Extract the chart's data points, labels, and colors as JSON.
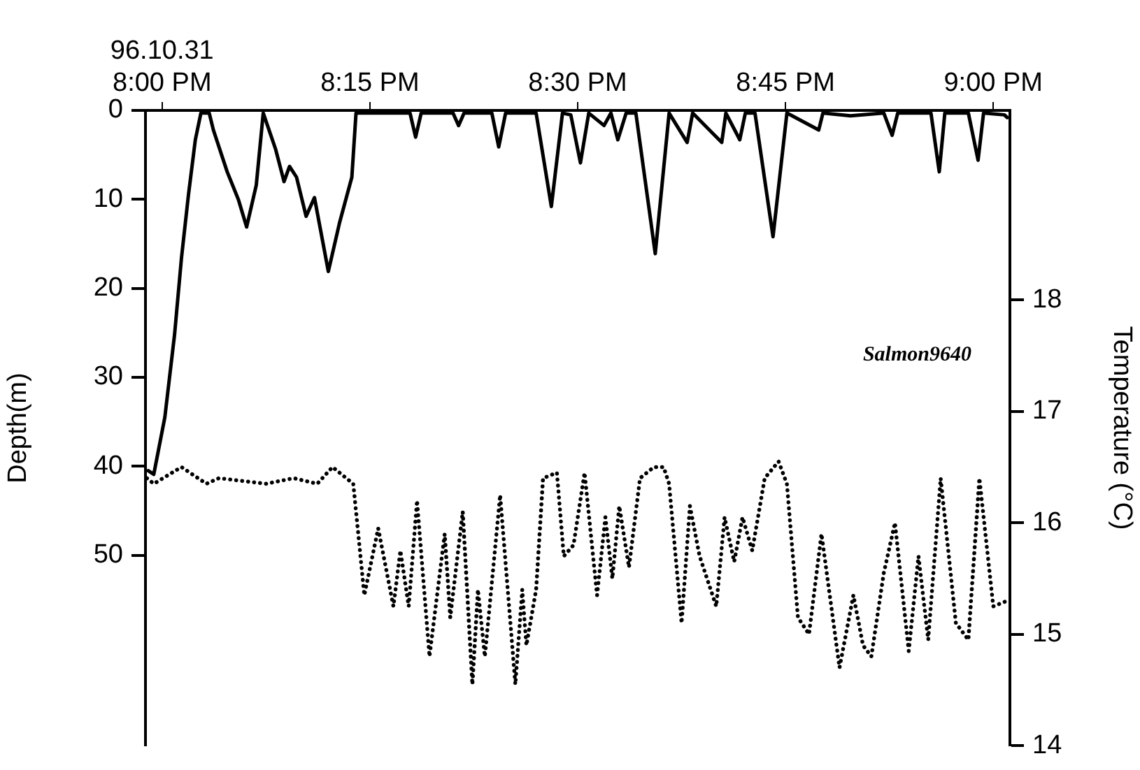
{
  "chart_data": {
    "type": "line",
    "ylabel": "Depth(m)",
    "y2label": "Temperature (°C)",
    "annotations": [
      "Salmon9640"
    ],
    "xlim": [
      19.98,
      21.02
    ],
    "xticks": [
      {
        "value": 20,
        "label": "96.10.31\n8:00 PM"
      },
      {
        "value": 20.25,
        "label": "8:15 PM"
      },
      {
        "value": 20.5,
        "label": "8:30 PM"
      },
      {
        "value": 20.75,
        "label": "8:45 PM"
      },
      {
        "value": 21,
        "label": "9:00 PM"
      }
    ],
    "ylim": [
      71.4,
      0
    ],
    "yticks": [
      0,
      10,
      20,
      30,
      40,
      50
    ],
    "y2lim": [
      14,
      19.7
    ],
    "y2ticks": [
      14,
      15,
      16,
      17,
      18
    ],
    "grid": false,
    "legend": false,
    "marker": "none",
    "series": [
      {
        "color": "#000000",
        "line_style": "solid",
        "x": [
          19.9833,
          19.99,
          20.0033,
          20.015,
          20.0233,
          20.0317,
          20.04,
          20.0467,
          20.0567,
          20.0617,
          20.0783,
          20.0917,
          20.1017,
          20.1133,
          20.1217,
          20.1367,
          20.1467,
          20.1533,
          20.1617,
          20.1733,
          20.1833,
          20.2,
          20.2133,
          20.2283,
          20.2333,
          20.2983,
          20.305,
          20.3117,
          20.35,
          20.3567,
          20.3633,
          20.3967,
          20.405,
          20.4133,
          20.45,
          20.4683,
          20.4817,
          20.4917,
          20.5033,
          20.5133,
          20.5317,
          20.54,
          20.5483,
          20.5583,
          20.57,
          20.5933,
          20.61,
          20.6317,
          20.6383,
          20.6733,
          20.6783,
          20.695,
          20.7017,
          20.7133,
          20.735,
          20.7517,
          20.79,
          20.795,
          20.8283,
          20.8683,
          20.8783,
          20.885,
          20.925,
          20.935,
          20.9417,
          20.97,
          20.9817,
          20.9883,
          21.0133,
          21.0167
        ],
        "values": [
          40.5,
          40.9,
          34.5,
          25.2,
          16.6,
          9.5,
          3.3,
          0.3,
          0.3,
          2.2,
          6.9,
          10.0,
          13.1,
          8.4,
          0.3,
          4.4,
          8.0,
          6.3,
          7.5,
          11.9,
          9.8,
          18.1,
          12.7,
          7.5,
          0.3,
          0.3,
          3.0,
          0.3,
          0.3,
          1.7,
          0.3,
          0.3,
          4.1,
          0.3,
          0.3,
          10.8,
          0.3,
          0.5,
          5.9,
          0.3,
          1.7,
          0.3,
          3.3,
          0.3,
          0.3,
          16.1,
          0.3,
          3.6,
          0.3,
          3.6,
          0.3,
          3.3,
          0.3,
          0.3,
          14.2,
          0.3,
          2.2,
          0.3,
          0.6,
          0.3,
          2.8,
          0.3,
          0.3,
          6.9,
          0.3,
          0.3,
          5.6,
          0.3,
          0.5,
          0.8
        ]
      },
      {
        "color": "#000000",
        "line_style": "dotted",
        "axis": "y2",
        "x": [
          19.9817,
          19.99,
          20.0233,
          20.0533,
          20.0683,
          20.125,
          20.1583,
          20.1867,
          20.205,
          20.23,
          20.2367,
          20.2433,
          20.26,
          20.2783,
          20.2867,
          20.2967,
          20.3067,
          20.3217,
          20.34,
          20.3467,
          20.3617,
          20.3733,
          20.38,
          20.3883,
          20.4067,
          20.425,
          20.4333,
          20.4383,
          20.45,
          20.4583,
          20.475,
          20.4833,
          20.495,
          20.5083,
          20.5233,
          20.5333,
          20.5417,
          20.55,
          20.5617,
          20.575,
          20.5917,
          20.6033,
          20.61,
          20.625,
          20.635,
          20.6467,
          20.6667,
          20.6767,
          20.6883,
          20.6983,
          20.71,
          20.725,
          20.7417,
          20.7517,
          20.765,
          20.7783,
          20.7933,
          20.815,
          20.8317,
          20.8433,
          20.8533,
          20.8683,
          20.8817,
          20.8983,
          20.91,
          20.9217,
          20.9367,
          20.955,
          20.97,
          20.9833,
          21.0,
          21.0167
        ],
        "values": [
          16.4,
          16.35,
          16.5,
          16.35,
          16.4,
          16.35,
          16.4,
          16.35,
          16.5,
          16.35,
          15.85,
          15.35,
          15.95,
          15.25,
          15.75,
          15.25,
          16.2,
          14.8,
          15.9,
          15.15,
          16.1,
          14.55,
          15.4,
          14.8,
          16.25,
          14.55,
          15.4,
          14.9,
          15.4,
          16.4,
          16.45,
          15.7,
          15.8,
          16.45,
          15.35,
          16.05,
          15.5,
          16.15,
          15.6,
          16.4,
          16.5,
          16.5,
          16.35,
          15.1,
          16.15,
          15.7,
          15.25,
          16.05,
          15.65,
          16.05,
          15.75,
          16.4,
          16.55,
          16.35,
          15.15,
          15.0,
          15.9,
          14.7,
          15.35,
          14.9,
          14.8,
          15.55,
          16.0,
          14.85,
          15.7,
          14.95,
          16.4,
          15.1,
          14.95,
          16.4,
          15.25,
          15.3
        ]
      }
    ]
  }
}
